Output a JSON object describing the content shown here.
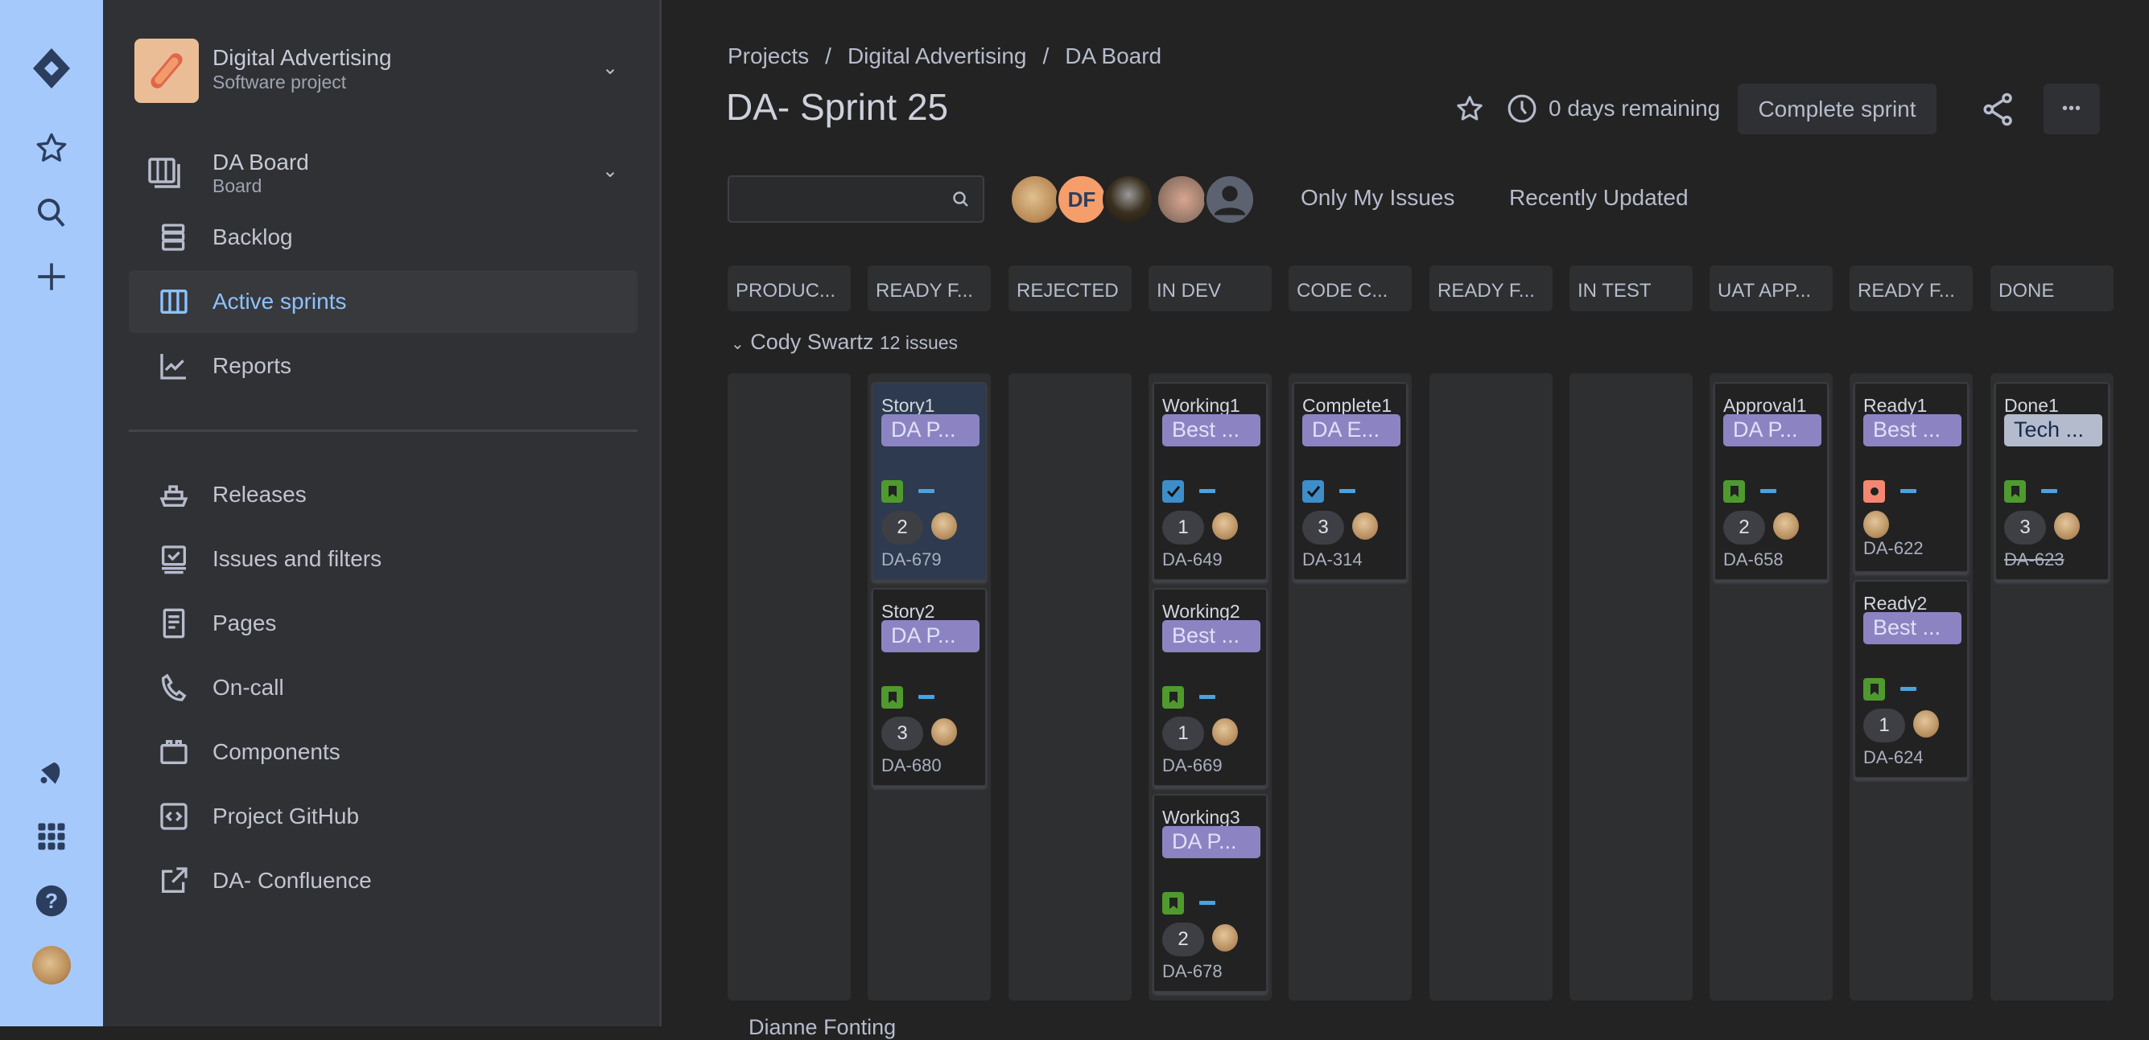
{
  "rail": {
    "icons": [
      "jira-logo-icon",
      "star-icon",
      "search-icon",
      "plus-icon",
      "bell-icon",
      "app-grid-icon",
      "help-icon",
      "profile-avatar"
    ]
  },
  "sidebar": {
    "project_name": "Digital Advertising",
    "project_type": "Software project",
    "board_name": "DA Board",
    "board_type": "Board",
    "items": [
      {
        "label": "Backlog",
        "icon": "backlog-icon"
      },
      {
        "label": "Active sprints",
        "icon": "board-columns-icon",
        "active": true
      },
      {
        "label": "Reports",
        "icon": "reports-chart-icon"
      }
    ],
    "items2": [
      {
        "label": "Releases",
        "icon": "ship-icon"
      },
      {
        "label": "Issues and filters",
        "icon": "issues-icon"
      },
      {
        "label": "Pages",
        "icon": "page-icon"
      },
      {
        "label": "On-call",
        "icon": "phone-icon"
      },
      {
        "label": "Components",
        "icon": "components-icon"
      },
      {
        "label": "Project GitHub",
        "icon": "code-icon"
      },
      {
        "label": "DA- Confluence",
        "icon": "external-link-icon"
      }
    ]
  },
  "header": {
    "breadcrumb": [
      "Projects",
      "Digital Advertising",
      "DA Board"
    ],
    "separator": "/",
    "title": "DA- Sprint 25",
    "days_remaining": "0 days remaining",
    "complete_sprint": "Complete sprint",
    "more": "•••"
  },
  "filters": {
    "search_placeholder": "",
    "avatar_initials": "DF",
    "only_my_issues": "Only My Issues",
    "recently_updated": "Recently Updated"
  },
  "colors": {
    "accent": "#8cc2ff",
    "rail": "#a6c9fc",
    "epic": "#8c84c2",
    "story": "#4f9a2e",
    "task": "#3d8ec9",
    "bug": "#f48771",
    "priority": "#4aa3df"
  },
  "columns": [
    "PRODUC...",
    "READY F...",
    "REJECTED",
    "IN DEV",
    "CODE C...",
    "READY F...",
    "IN TEST",
    "UAT APP...",
    "READY F...",
    "DONE"
  ],
  "swimlane": {
    "name": "Cody Swartz",
    "count": "12 issues",
    "next_name": "Dianne Fonting"
  },
  "cards": [
    {
      "col": 1,
      "title": "Story1",
      "epic": "DA P...",
      "type": "story",
      "points": "2",
      "key": "DA-679",
      "selected": true
    },
    {
      "col": 1,
      "title": "Story2",
      "epic": "DA P...",
      "type": "story",
      "points": "3",
      "key": "DA-680"
    },
    {
      "col": 3,
      "title": "Working1",
      "epic": "Best ...",
      "type": "task",
      "points": "1",
      "key": "DA-649"
    },
    {
      "col": 3,
      "title": "Working2",
      "epic": "Best ...",
      "type": "story",
      "points": "1",
      "key": "DA-669"
    },
    {
      "col": 3,
      "title": "Working3",
      "epic": "DA P...",
      "type": "story",
      "points": "2",
      "key": "DA-678"
    },
    {
      "col": 4,
      "title": "Complete1",
      "epic": "DA E...",
      "type": "task",
      "points": "3",
      "key": "DA-314"
    },
    {
      "col": 7,
      "title": "Approval1",
      "epic": "DA P...",
      "type": "story",
      "points": "2",
      "key": "DA-658"
    },
    {
      "col": 8,
      "title": "Ready1",
      "epic": "Best ...",
      "type": "bug",
      "points": null,
      "key": "DA-622"
    },
    {
      "col": 8,
      "title": "Ready2",
      "epic": "Best ...",
      "type": "story",
      "points": "1",
      "key": "DA-624"
    },
    {
      "col": 9,
      "title": "Done1",
      "epic": "Tech ...",
      "epic_style": "tech",
      "type": "story",
      "points": "3",
      "key": "DA-623",
      "done": true
    }
  ]
}
